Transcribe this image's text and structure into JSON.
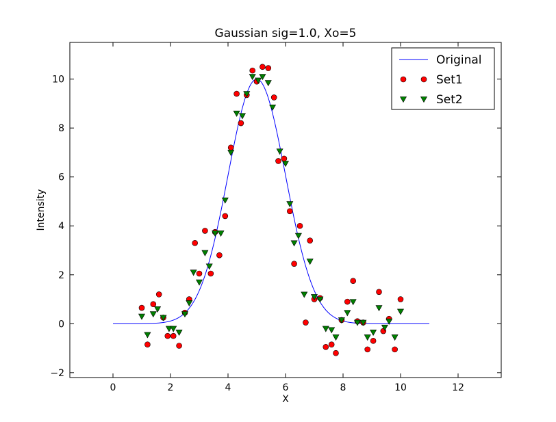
{
  "chart_data": {
    "type": "scatter",
    "title": "Gaussian sig=1.0, Xo=5",
    "xlabel": "X",
    "ylabel": "Intensity",
    "xlim": [
      -1.5,
      13.5
    ],
    "ylim": [
      -2.2,
      11.5
    ],
    "xticks": [
      0,
      2,
      4,
      6,
      8,
      10,
      12
    ],
    "yticks": [
      -2,
      0,
      2,
      4,
      6,
      8,
      10
    ],
    "grid": false,
    "legend_position": "top-right",
    "series": [
      {
        "name": "Original",
        "kind": "line",
        "color": "#0000ff",
        "gaussian": {
          "amplitude": 10,
          "center": 5,
          "sigma": 1.0,
          "x_start": 0,
          "x_end": 11
        }
      },
      {
        "name": "Set1",
        "kind": "scatter",
        "marker": "circle",
        "color": "#ff0000",
        "points": [
          [
            1.0,
            0.65
          ],
          [
            1.2,
            -0.85
          ],
          [
            1.4,
            0.8
          ],
          [
            1.6,
            1.2
          ],
          [
            1.75,
            0.25
          ],
          [
            1.9,
            -0.5
          ],
          [
            2.1,
            -0.5
          ],
          [
            2.3,
            -0.9
          ],
          [
            2.5,
            0.45
          ],
          [
            2.65,
            1.0
          ],
          [
            2.85,
            3.3
          ],
          [
            3.0,
            2.05
          ],
          [
            3.2,
            3.8
          ],
          [
            3.4,
            2.05
          ],
          [
            3.55,
            3.75
          ],
          [
            3.7,
            2.8
          ],
          [
            3.9,
            4.4
          ],
          [
            4.1,
            7.2
          ],
          [
            4.3,
            9.4
          ],
          [
            4.45,
            8.2
          ],
          [
            4.65,
            9.35
          ],
          [
            4.85,
            10.35
          ],
          [
            5.0,
            9.9
          ],
          [
            5.2,
            10.5
          ],
          [
            5.4,
            10.45
          ],
          [
            5.6,
            9.25
          ],
          [
            5.75,
            6.65
          ],
          [
            5.95,
            6.75
          ],
          [
            6.15,
            4.6
          ],
          [
            6.3,
            2.45
          ],
          [
            6.5,
            4.0
          ],
          [
            6.7,
            0.05
          ],
          [
            6.85,
            3.4
          ],
          [
            7.0,
            1.0
          ],
          [
            7.2,
            1.05
          ],
          [
            7.4,
            -0.95
          ],
          [
            7.6,
            -0.85
          ],
          [
            7.75,
            -1.2
          ],
          [
            7.95,
            0.15
          ],
          [
            8.15,
            0.9
          ],
          [
            8.35,
            1.75
          ],
          [
            8.5,
            0.1
          ],
          [
            8.7,
            0.05
          ],
          [
            8.85,
            -1.05
          ],
          [
            9.05,
            -0.7
          ],
          [
            9.25,
            1.3
          ],
          [
            9.4,
            -0.3
          ],
          [
            9.6,
            0.2
          ],
          [
            9.8,
            -1.05
          ],
          [
            10.0,
            1.0
          ]
        ]
      },
      {
        "name": "Set2",
        "kind": "scatter",
        "marker": "triangle-down",
        "color": "#008000",
        "points": [
          [
            1.0,
            0.3
          ],
          [
            1.2,
            -0.45
          ],
          [
            1.4,
            0.4
          ],
          [
            1.55,
            0.6
          ],
          [
            1.75,
            0.25
          ],
          [
            1.95,
            -0.2
          ],
          [
            2.1,
            -0.2
          ],
          [
            2.3,
            -0.35
          ],
          [
            2.5,
            0.4
          ],
          [
            2.65,
            0.85
          ],
          [
            2.8,
            2.1
          ],
          [
            3.0,
            1.7
          ],
          [
            3.2,
            2.9
          ],
          [
            3.35,
            2.35
          ],
          [
            3.55,
            3.7
          ],
          [
            3.75,
            3.7
          ],
          [
            3.9,
            5.05
          ],
          [
            4.1,
            7.0
          ],
          [
            4.3,
            8.6
          ],
          [
            4.5,
            8.5
          ],
          [
            4.65,
            9.4
          ],
          [
            4.85,
            10.1
          ],
          [
            5.05,
            9.95
          ],
          [
            5.2,
            10.1
          ],
          [
            5.4,
            9.85
          ],
          [
            5.55,
            8.85
          ],
          [
            5.8,
            7.05
          ],
          [
            6.0,
            6.55
          ],
          [
            6.15,
            4.9
          ],
          [
            6.3,
            3.3
          ],
          [
            6.45,
            3.6
          ],
          [
            6.65,
            1.2
          ],
          [
            6.85,
            2.55
          ],
          [
            7.0,
            1.1
          ],
          [
            7.2,
            1.0
          ],
          [
            7.4,
            -0.2
          ],
          [
            7.6,
            -0.25
          ],
          [
            7.75,
            -0.55
          ],
          [
            7.95,
            0.15
          ],
          [
            8.15,
            0.45
          ],
          [
            8.35,
            0.9
          ],
          [
            8.5,
            0.05
          ],
          [
            8.7,
            0.05
          ],
          [
            8.85,
            -0.55
          ],
          [
            9.05,
            -0.35
          ],
          [
            9.25,
            0.65
          ],
          [
            9.45,
            -0.15
          ],
          [
            9.6,
            0.1
          ],
          [
            9.8,
            -0.55
          ],
          [
            10.0,
            0.5
          ]
        ]
      }
    ]
  }
}
